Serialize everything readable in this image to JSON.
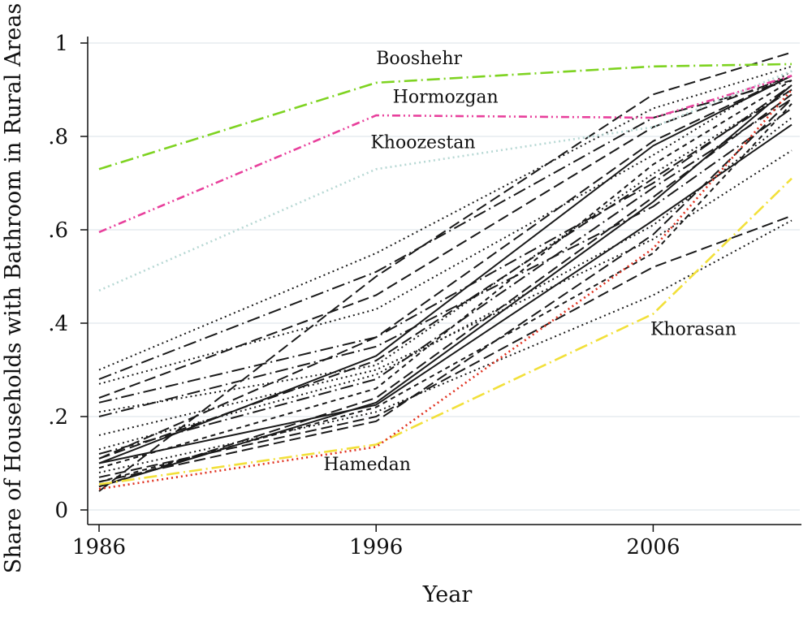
{
  "chart_data": {
    "type": "line",
    "title": "",
    "xlabel": "Year",
    "ylabel": "Share of Households with Bathroom in Rural Areas",
    "x": [
      1986,
      1996,
      2006,
      2011
    ],
    "xticks": [
      "1986",
      "1996",
      "2006"
    ],
    "yticks": [
      "0",
      ".2",
      ".4",
      ".6",
      ".8",
      "1"
    ],
    "xlim": [
      1986,
      2011
    ],
    "ylim": [
      0,
      1
    ],
    "grid": "horizontal",
    "legend": "none",
    "highlighted_series": [
      {
        "name": "Booshehr",
        "color": "#7ed321",
        "dash": "dashdot",
        "values": [
          0.73,
          0.915,
          0.95,
          0.955
        ]
      },
      {
        "name": "Hormozgan",
        "color": "#e8409c",
        "dash": "dashdotdot",
        "values": [
          0.595,
          0.845,
          0.84,
          0.93
        ]
      },
      {
        "name": "Khoozestan",
        "color": "#b7d8d4",
        "dash": "dotted",
        "values": [
          0.47,
          0.73,
          0.82,
          0.94
        ]
      },
      {
        "name": "Khorasan",
        "color": "#f2e03a",
        "dash": "dashdot",
        "values": [
          0.055,
          0.14,
          0.42,
          0.71
        ]
      },
      {
        "name": "Hamedan",
        "color": "#e0301e",
        "dash": "dotted",
        "values": [
          0.045,
          0.135,
          0.56,
          0.9
        ]
      }
    ],
    "other_series": [
      {
        "values": [
          0.1,
          0.225,
          0.62,
          0.825
        ],
        "dash": "solid"
      },
      {
        "values": [
          0.1,
          0.33,
          0.78,
          0.93
        ],
        "dash": "solid"
      },
      {
        "values": [
          0.05,
          0.23,
          0.66,
          0.91
        ],
        "dash": "solid"
      },
      {
        "values": [
          0.04,
          0.5,
          0.89,
          0.98
        ],
        "dash": "longdash"
      },
      {
        "values": [
          0.11,
          0.37,
          0.79,
          0.93
        ],
        "dash": "longdash"
      },
      {
        "values": [
          0.24,
          0.46,
          0.82,
          0.93
        ],
        "dash": "longdash"
      },
      {
        "values": [
          0.06,
          0.19,
          0.59,
          0.88
        ],
        "dash": "longdash"
      },
      {
        "values": [
          0.23,
          0.37,
          0.7,
          0.91
        ],
        "dash": "dashdot"
      },
      {
        "values": [
          0.3,
          0.55,
          0.86,
          0.95
        ],
        "dash": "dotted"
      },
      {
        "values": [
          0.28,
          0.51,
          0.84,
          0.92
        ],
        "dash": "dashdot"
      },
      {
        "values": [
          0.21,
          0.31,
          0.72,
          0.9
        ],
        "dash": "dotted"
      },
      {
        "values": [
          0.16,
          0.3,
          0.58,
          0.77
        ],
        "dash": "dotted"
      },
      {
        "values": [
          0.12,
          0.28,
          0.69,
          0.88
        ],
        "dash": "dashdot"
      },
      {
        "values": [
          0.07,
          0.2,
          0.52,
          0.63
        ],
        "dash": "longdash"
      },
      {
        "values": [
          0.08,
          0.21,
          0.46,
          0.62
        ],
        "dash": "dotted"
      },
      {
        "values": [
          0.09,
          0.26,
          0.74,
          0.92
        ],
        "dash": "shortdash"
      },
      {
        "values": [
          0.05,
          0.24,
          0.67,
          0.89
        ],
        "dash": "longdash"
      },
      {
        "values": [
          0.27,
          0.43,
          0.76,
          0.94
        ],
        "dash": "dotted"
      },
      {
        "values": [
          0.2,
          0.35,
          0.65,
          0.86
        ],
        "dash": "dashdot"
      },
      {
        "values": [
          0.13,
          0.29,
          0.61,
          0.84
        ],
        "dash": "dotted"
      },
      {
        "values": [
          0.06,
          0.22,
          0.55,
          0.87
        ],
        "dash": "shortdash"
      },
      {
        "values": [
          0.11,
          0.32,
          0.71,
          0.9
        ],
        "dash": "longdash"
      }
    ],
    "annotations": [
      {
        "text": "Booshehr",
        "series": "Booshehr",
        "at_x": 1996,
        "at_y": 0.955
      },
      {
        "text": "Hormozgan",
        "series": "Hormozgan",
        "at_x": 1996.6,
        "at_y": 0.872
      },
      {
        "text": "Khoozestan",
        "series": "Khoozestan",
        "at_x": 1995.8,
        "at_y": 0.775
      },
      {
        "text": "Khorasan",
        "series": "Khorasan",
        "at_x": 2005.9,
        "at_y": 0.375
      },
      {
        "text": "Hamedan",
        "series": "Hamedan",
        "at_x": 1994.1,
        "at_y": 0.085
      }
    ]
  }
}
